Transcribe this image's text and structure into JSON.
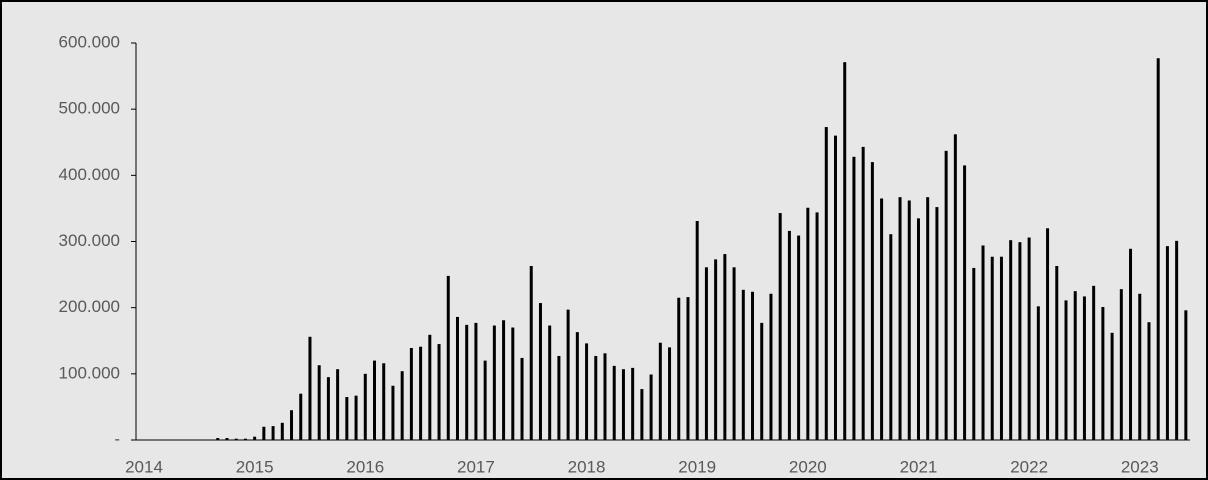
{
  "chart_data": {
    "type": "bar",
    "categories": [
      "2014",
      null,
      null,
      null,
      null,
      null,
      null,
      null,
      null,
      null,
      null,
      null,
      "2015",
      null,
      null,
      null,
      null,
      null,
      null,
      null,
      null,
      null,
      null,
      null,
      "2016",
      null,
      null,
      null,
      null,
      null,
      null,
      null,
      null,
      null,
      null,
      null,
      "2017",
      null,
      null,
      null,
      null,
      null,
      null,
      null,
      null,
      null,
      null,
      null,
      "2018",
      null,
      null,
      null,
      null,
      null,
      null,
      null,
      null,
      null,
      null,
      null,
      "2019",
      null,
      null,
      null,
      null,
      null,
      null,
      null,
      null,
      null,
      null,
      null,
      "2020",
      null,
      null,
      null,
      null,
      null,
      null,
      null,
      null,
      null,
      null,
      null,
      "2021",
      null,
      null,
      null,
      null,
      null,
      null,
      null,
      null,
      null,
      null,
      null,
      "2022",
      null,
      null,
      null,
      null,
      null,
      null,
      null,
      null,
      null,
      null,
      null,
      "2023",
      null,
      null,
      null,
      null,
      null
    ],
    "values": [
      0,
      0,
      0,
      0,
      0,
      0,
      0,
      0,
      3000,
      3000,
      2000,
      2000,
      5000,
      20000,
      21000,
      26000,
      45000,
      70000,
      156000,
      113000,
      95000,
      107000,
      65000,
      67000,
      100000,
      120000,
      116000,
      82000,
      104000,
      139000,
      141000,
      159000,
      145000,
      248000,
      186000,
      174000,
      177000,
      120000,
      173000,
      181000,
      170000,
      124000,
      263000,
      207000,
      173000,
      127000,
      197000,
      163000,
      146000,
      127000,
      131000,
      112000,
      107000,
      109000,
      77000,
      99000,
      147000,
      140000,
      215000,
      216000,
      331000,
      261000,
      273000,
      281000,
      261000,
      227000,
      224000,
      177000,
      221000,
      343000,
      316000,
      309000,
      351000,
      344000,
      473000,
      460000,
      571000,
      428000,
      443000,
      420000,
      365000,
      311000,
      367000,
      362000,
      335000,
      367000,
      352000,
      437000,
      462000,
      415000,
      260000,
      294000,
      277000,
      277000,
      302000,
      299000,
      306000,
      202000,
      320000,
      263000,
      211000,
      225000,
      217000,
      233000,
      201000,
      162000,
      228000,
      289000,
      221000,
      178000,
      577000,
      293000,
      301000,
      196000
    ],
    "color": "#000000",
    "ylim": [
      0,
      600000
    ],
    "yticks": [
      {
        "value": 0,
        "label": "-"
      },
      {
        "value": 100000,
        "label": "100.000"
      },
      {
        "value": 200000,
        "label": "200.000"
      },
      {
        "value": 300000,
        "label": "300.000"
      },
      {
        "value": 400000,
        "label": "400.000"
      },
      {
        "value": 500000,
        "label": "500.000"
      },
      {
        "value": 600000,
        "label": "600.000"
      }
    ],
    "grid": false
  }
}
